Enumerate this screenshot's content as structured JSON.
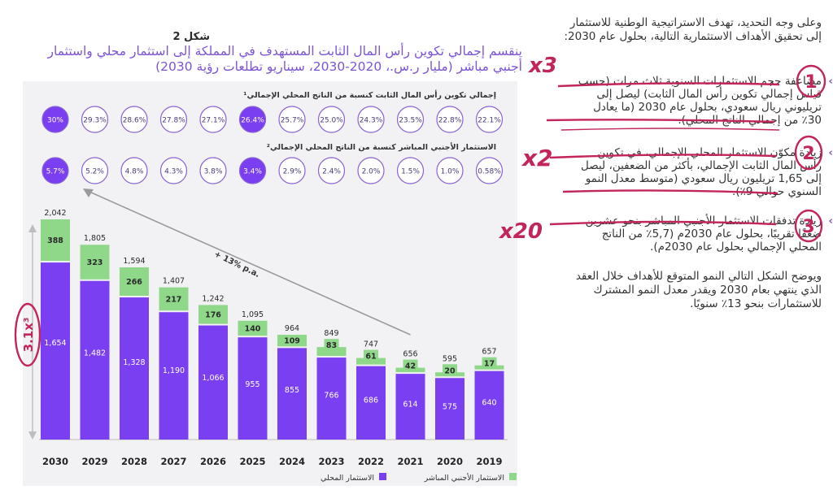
{
  "figure": {
    "label": "شكل 2",
    "title_line1": "ينقسم إجمالي تكوين رأس المال الثابت المستهدف في المملكة إلى استثمار محلي واستثمار",
    "title_line2": "أجنبي مباشر (مليار ر.س.، 2020-2030، سيناريو تطلعات رؤية 2030)"
  },
  "chart_data": {
    "type": "bar",
    "stacked": true,
    "categories": [
      "2030",
      "2029",
      "2028",
      "2027",
      "2026",
      "2025",
      "2024",
      "2023",
      "2022",
      "2021",
      "2020",
      "2019"
    ],
    "series": [
      {
        "name": "الاستثمار المحلي",
        "color": "#7b3ff2",
        "values": [
          1654,
          1482,
          1328,
          1190,
          1066,
          955,
          855,
          766,
          686,
          614,
          575,
          640
        ]
      },
      {
        "name": "الاستثمار الأجنبي المباشر",
        "color": "#8fd88a",
        "values": [
          388,
          323,
          266,
          217,
          176,
          140,
          109,
          83,
          61,
          42,
          20,
          17
        ]
      }
    ],
    "totals": [
      "2,042",
      "1,805",
      "1,594",
      "1,407",
      "1,242",
      "1,095",
      "964",
      "849",
      "747",
      "656",
      "595",
      "657"
    ],
    "domestic_labels": [
      "1,654",
      "1,482",
      "1,328",
      "1,190",
      "1,066",
      "955",
      "855",
      "766",
      "686",
      "614",
      "575",
      "640"
    ],
    "fdi_labels": [
      "388",
      "323",
      "266",
      "217",
      "176",
      "140",
      "109",
      "83",
      "61",
      "42",
      "20",
      "17"
    ],
    "gfcf_share_label": "إجمالي تكوين رأس المال الثابت كنسبة من الناتج المحلي الإجمالي¹",
    "gfcf_share": [
      "30%",
      "29.3%",
      "28.6%",
      "27.8%",
      "27.1%",
      "26.4%",
      "25.7%",
      "25.0%",
      "24.3%",
      "23.5%",
      "22.8%",
      "22.1%"
    ],
    "gfcf_highlight": [
      true,
      false,
      false,
      false,
      false,
      true,
      false,
      false,
      false,
      false,
      false,
      false
    ],
    "fdi_share_label": "الاستثمار الأجنبي المباشر كنسبة من الناتج المحلي الإجمالي²",
    "fdi_share": [
      "5.7%",
      "5.2%",
      "4.8%",
      "4.3%",
      "3.8%",
      "3.4%",
      "2.9%",
      "2.4%",
      "2.0%",
      "1.5%",
      "1.0%",
      "0.58%"
    ],
    "fdi_highlight": [
      true,
      false,
      false,
      false,
      false,
      true,
      false,
      false,
      false,
      false,
      false,
      false
    ],
    "growth_annotation": "+ 13% p.a.",
    "multiple_annotation": "3.1x³",
    "legend": {
      "domestic": "الاستثمار المحلي",
      "fdi": "الاستثمار الأجنبي المباشر"
    },
    "colors": {
      "domestic": "#7b3ff2",
      "fdi": "#8fd88a",
      "highlight": "#7b3ff2",
      "circle_outline": "#8a63d2"
    }
  },
  "text": {
    "intro": "وعلى وجه التحديد، تهدف الاستراتيجية الوطنية للاستثمار إلى تحقيق الأهداف الاستثمارية التالية، بحلول عام 2030:",
    "bullets": [
      "مضاعفة حجم الاستثمارات السنوية ثلاث مرات (حسب قياس إجمالي تكوين رأس المال الثابت) ليصل إلى تريليوني ريال سعودي، بحلول عام 2030 (ما يعادل 30٪ من إجمالي الناتج المحلي).",
      "زيادة مكوّن الاستثمار المحلي الإجمالي، في تكوين رأس المال الثابت الإجمالي، بأكثر من الضعفين، ليصل إلى 1,65 تريليون ريال سعودي (متوسط معدل النمو السنوي حوالي 9٪).",
      "زيادة تدفقات الاستثمار الأجنبي المباشر بنحو عشرين ضعفًا تقريبًا، بحلول عام 2030م (5,7٪ من الناتج المحلي الإجمالي بحلول عام 2030م)."
    ],
    "outro": "ويوضح الشكل التالي النمو المتوقع للأهداف خلال العقد الذي ينتهي بعام 2030 ويقدر معدل النمو المشترك للاستثمارات بنحو 13٪ سنويًا."
  },
  "handwriting": {
    "x3": "x3",
    "x2": "x2",
    "x20": "x20",
    "n1": "1",
    "n2": "2",
    "n3": "3",
    "chart_multiple": "3.1x³",
    "color": "#c2255c"
  }
}
